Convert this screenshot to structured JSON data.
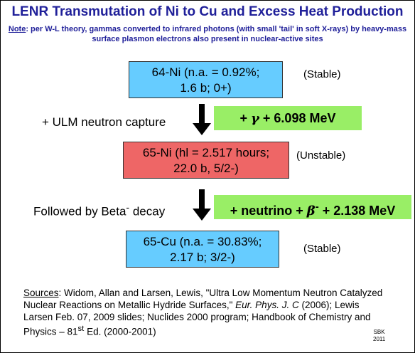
{
  "title": "LENR Transmutation of Ni to Cu and Excess Heat Production",
  "note": {
    "label": "Note",
    "text": ": per W-L theory, gammas converted to infrared photons (with small 'tail' in soft X-rays) by heavy-mass surface plasmon electrons also present in nuclear-active sites"
  },
  "nodes": [
    {
      "line1": "64-Ni (n.a. = 0.92%;",
      "line2": "1.6 b; 0+)",
      "status": "(Stable)",
      "color": "#66ccff"
    },
    {
      "line1": "65-Ni (hl = 2.517 hours;",
      "line2": "22.0 b, 5/2-)",
      "status": "(Unstable)",
      "color": "#ee6666"
    },
    {
      "line1": "65-Cu (n.a. = 30.83%;",
      "line2": "2.17 b; 3/2-)",
      "status": "(Stable)",
      "color": "#66ccff"
    }
  ],
  "steps": [
    {
      "label": "+ ULM neutron capture",
      "product": {
        "pre": "+ ",
        "symbol": "γ",
        "post": " + 6.098 MeV"
      }
    },
    {
      "label_main": "Followed by Beta",
      "label_sup": "-",
      "label_end": " decay",
      "product": {
        "pre": "+ neutrino + ",
        "symbol": "β",
        "sup": "-",
        "post": " + 2.138 MeV"
      }
    }
  ],
  "sources": {
    "label": "Sources",
    "part1": ": Widom, Allan and Larsen, Lewis, \"Ultra Low Momentum Neutron Catalyzed Nuclear Reactions on Metallic Hydride Surfaces,\" ",
    "journal": "Eur. Phys. J. C",
    "part2": " (2006); Lewis Larsen Feb. 07, 2009 slides; Nuclides 2000 program; Handbook of Chemistry and Physics – 81",
    "sup": "st",
    "part3": " Ed. (2000-2001)"
  },
  "credit": {
    "line1": "SBK",
    "line2": "2011"
  },
  "colors": {
    "title": "#1f1f99",
    "stable": "#66ccff",
    "unstable": "#ee6666",
    "product": "#99ee66"
  }
}
